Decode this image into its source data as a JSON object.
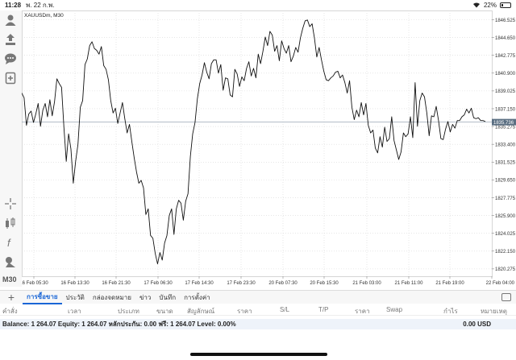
{
  "status_bar": {
    "time": "11:28",
    "date": "พ. 22 ก.พ.",
    "battery": "22%"
  },
  "sidebar": {
    "icons": [
      "account-icon",
      "trade-icon",
      "chat-icon",
      "new-order-icon",
      "crosshair-icon",
      "indicators-icon",
      "function-icon",
      "objects-icon"
    ],
    "timeframe": "M30"
  },
  "chart": {
    "symbol_label": "XAUUSDm, M30",
    "current_price": "1835.736",
    "y_ticks": [
      "1846.525",
      "1844.650",
      "1842.775",
      "1840.900",
      "1839.025",
      "1837.150",
      "1835.275",
      "1833.400",
      "1831.525",
      "1829.650",
      "1827.775",
      "1825.900",
      "1824.025",
      "1822.150",
      "1820.275"
    ],
    "x_ticks": [
      "16 Feb 05:30",
      "16 Feb 13:30",
      "16 Feb 21:30",
      "17 Feb 06:30",
      "17 Feb 14:30",
      "17 Feb 23:30",
      "20 Feb 07:30",
      "20 Feb 15:30",
      "21 Feb 03:00",
      "21 Feb 11:00",
      "21 Feb 19:00",
      "22 Feb 04:00"
    ],
    "colors": {
      "line": "#111111",
      "grid": "#d8d8d8",
      "price_line": "#9aa7b5",
      "price_tag": "#5b6f82"
    }
  },
  "chart_data": {
    "type": "line",
    "ylim": [
      1819.5,
      1847.5
    ],
    "series": [
      {
        "values": [
          1838.8,
          1838.3,
          1835.4,
          1836.6,
          1836.9,
          1835.7,
          1836.6,
          1837.7,
          1835.3,
          1837.0,
          1837.7,
          1836.3,
          1838.1,
          1836.4,
          1837.9,
          1840.3,
          1839.8,
          1839.4,
          1835.2,
          1831.6,
          1834.5,
          1832.9,
          1829.3,
          1831.6,
          1833.4,
          1837.3,
          1838.0,
          1841.8,
          1842.4,
          1843.8,
          1844.2,
          1843.5,
          1843.3,
          1842.9,
          1843.7,
          1841.7,
          1841.3,
          1840.2,
          1838.0,
          1836.7,
          1837.2,
          1835.6,
          1836.7,
          1837.8,
          1836.1,
          1834.6,
          1835.5,
          1833.7,
          1832.0,
          1830.5,
          1829.3,
          1829.6,
          1828.8,
          1826.0,
          1826.6,
          1823.8,
          1823.5,
          1821.9,
          1820.8,
          1822.0,
          1821.2,
          1823.0,
          1823.8,
          1825.9,
          1826.6,
          1823.9,
          1826.6,
          1827.5,
          1827.2,
          1825.4,
          1827.4,
          1828.2,
          1832.1,
          1834.5,
          1835.7,
          1838.2,
          1839.8,
          1840.7,
          1842.0,
          1841.0,
          1840.3,
          1841.9,
          1842.3,
          1842.3,
          1840.9,
          1841.8,
          1839.1,
          1840.4,
          1840.3,
          1838.6,
          1838.4,
          1841.3,
          1840.8,
          1839.5,
          1840.5,
          1840.1,
          1841.4,
          1842.1,
          1840.6,
          1841.4,
          1840.4,
          1842.9,
          1841.9,
          1843.2,
          1844.7,
          1843.8,
          1845.3,
          1844.9,
          1843.2,
          1843.8,
          1842.2,
          1844.3,
          1843.5,
          1843.0,
          1843.8,
          1842.1,
          1842.7,
          1843.6,
          1843.1,
          1844.6,
          1845.6,
          1846.4,
          1846.5,
          1845.8,
          1846.1,
          1844.6,
          1842.6,
          1843.6,
          1842.3,
          1841.1,
          1840.2,
          1840.1,
          1840.4,
          1840.6,
          1841.0,
          1841.1,
          1840.4,
          1840.7,
          1839.9,
          1838.8,
          1840.1,
          1837.3,
          1836.0,
          1837.0,
          1836.3,
          1837.8,
          1836.5,
          1837.7,
          1835.4,
          1834.6,
          1834.9,
          1833.0,
          1832.5,
          1834.2,
          1833.1,
          1835.2,
          1833.7,
          1834.0,
          1836.3,
          1833.8,
          1832.8,
          1831.8,
          1832.6,
          1834.6,
          1834.2,
          1834.5,
          1836.3,
          1834.1,
          1839.9,
          1835.3,
          1838.0,
          1838.8,
          1838.4,
          1836.7,
          1834.3,
          1836.4,
          1836.3,
          1837.4,
          1835.9,
          1834.0,
          1833.9,
          1835.0,
          1835.8,
          1834.7,
          1835.5,
          1835.1,
          1835.9,
          1835.9,
          1836.3,
          1836.5,
          1837.1,
          1836.7,
          1837.2,
          1836.2,
          1836.1,
          1836.2,
          1835.9,
          1835.9,
          1835.8
        ]
      }
    ]
  },
  "tabs": {
    "items": [
      "การซื้อขาย",
      "ประวัติ",
      "กล่องจดหมาย",
      "ข่าว",
      "บันทึก",
      "การตั้งค่า"
    ],
    "active_index": 0
  },
  "table_header": {
    "columns": [
      "คำสั่ง",
      "เวลา",
      "ประเภท",
      "ขนาด",
      "สัญลักษณ์",
      "ราคา",
      "S/L",
      "T/P",
      "ราคา",
      "Swap",
      "กำไร",
      "หมายเหตุ"
    ]
  },
  "balance_bar": {
    "text": "Balance: 1 264.07 Equity: 1 264.07 หลักประกัน: 0.00 ฟรี: 1 264.07 Level: 0.00%",
    "profit": "0.00",
    "currency": "USD"
  }
}
